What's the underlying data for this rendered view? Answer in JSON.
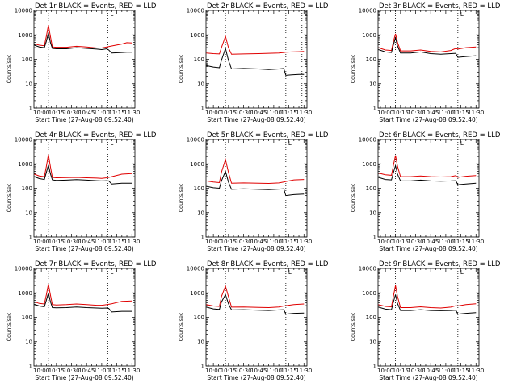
{
  "layout": {
    "rows": 3,
    "cols": 3
  },
  "colors": {
    "events": "#000000",
    "lld": "#e00000"
  },
  "chart_data": [
    {
      "type": "line",
      "title": "Det 1r BLACK = Events, RED = LLD",
      "xlabel": "Start Time (27-Aug-08 09:52:40)",
      "ylabel": "Counts/sec",
      "yscale": "log",
      "ylim": [
        1,
        10000
      ],
      "yticks": [
        1,
        10,
        100,
        1000,
        10000
      ],
      "ytick_labels": [
        "1",
        "10",
        "100",
        "1000",
        "10000"
      ],
      "xlim": [
        "09:52:40",
        "11:33:00"
      ],
      "xticks": [
        "10:00",
        "10:15",
        "10:30",
        "10:45",
        "11:00",
        "11:15",
        "11:30"
      ],
      "vlines": [
        "10:07",
        "11:06"
      ],
      "marker_label": "L",
      "x": [
        "09:53",
        "09:58",
        "10:03",
        "10:05",
        "10:07",
        "10:09",
        "10:11",
        "10:15",
        "10:25",
        "10:35",
        "10:45",
        "10:55",
        "11:00",
        "11:05",
        "11:07",
        "11:10",
        "11:20",
        "11:25",
        "11:30"
      ],
      "series": [
        {
          "name": "Events",
          "values": [
            380,
            320,
            300,
            550,
            1200,
            500,
            280,
            270,
            270,
            300,
            280,
            260,
            250,
            270,
            240,
            180,
            190,
            195,
            195
          ]
        },
        {
          "name": "LLD",
          "values": [
            430,
            380,
            360,
            900,
            2500,
            900,
            320,
            310,
            310,
            340,
            320,
            290,
            290,
            320,
            330,
            350,
            420,
            480,
            470
          ]
        }
      ]
    },
    {
      "type": "line",
      "title": "Det 2r BLACK = Events, RED = LLD",
      "xlabel": "Start Time (27-Aug-08 09:52:40)",
      "ylabel": "Counts/sec",
      "yscale": "log",
      "ylim": [
        1,
        10000
      ],
      "yticks": [
        1,
        10,
        100,
        1000,
        10000
      ],
      "ytick_labels": [
        "1",
        "10",
        "100",
        "1000",
        "10000"
      ],
      "xlim": [
        "09:52:40",
        "11:33:00"
      ],
      "xticks": [
        "10:00",
        "10:15",
        "10:30",
        "10:45",
        "11:00",
        "11:15",
        "11:30"
      ],
      "vlines": [
        "10:12",
        "11:12",
        "11:28"
      ],
      "marker_label": "L",
      "x": [
        "09:53",
        "10:00",
        "10:06",
        "10:08",
        "10:12",
        "10:15",
        "10:18",
        "10:30",
        "10:45",
        "10:55",
        "11:05",
        "11:10",
        "11:12",
        "11:18",
        "11:25",
        "11:30"
      ],
      "series": [
        {
          "name": "Events",
          "values": [
            55,
            48,
            45,
            90,
            280,
            90,
            40,
            42,
            40,
            38,
            40,
            42,
            22,
            23,
            24,
            24
          ]
        },
        {
          "name": "LLD",
          "values": [
            180,
            170,
            165,
            300,
            880,
            300,
            160,
            165,
            170,
            175,
            180,
            190,
            195,
            200,
            205,
            210
          ]
        }
      ]
    },
    {
      "type": "line",
      "title": "Det 3r BLACK = Events, RED = LLD",
      "xlabel": "Start Time (27-Aug-08 09:52:40)",
      "ylabel": "Counts/sec",
      "yscale": "log",
      "ylim": [
        1,
        10000
      ],
      "yticks": [
        1,
        10,
        100,
        1000,
        10000
      ],
      "ytick_labels": [
        "1",
        "10",
        "100",
        "1000",
        "10000"
      ],
      "xlim": [
        "09:52:40",
        "11:33:00"
      ],
      "xticks": [
        "10:00",
        "10:15",
        "10:30",
        "10:45",
        "11:00",
        "11:15",
        "11:30"
      ],
      "vlines": [
        "10:10",
        "11:12"
      ],
      "marker_label": "L",
      "x": [
        "09:53",
        "10:00",
        "10:06",
        "10:08",
        "10:10",
        "10:12",
        "10:15",
        "10:25",
        "10:35",
        "10:45",
        "10:55",
        "11:05",
        "11:10",
        "11:12",
        "11:20",
        "11:30"
      ],
      "series": [
        {
          "name": "Events",
          "values": [
            250,
            200,
            190,
            400,
            750,
            350,
            180,
            180,
            200,
            170,
            160,
            170,
            175,
            120,
            130,
            140
          ]
        },
        {
          "name": "LLD",
          "values": [
            300,
            240,
            230,
            550,
            1100,
            500,
            220,
            220,
            240,
            210,
            200,
            230,
            280,
            260,
            300,
            320
          ]
        }
      ]
    },
    {
      "type": "line",
      "title": "Det 4r BLACK = Events, RED = LLD",
      "xlabel": "Start Time (27-Aug-08 09:52:40)",
      "ylabel": "Counts/sec",
      "yscale": "log",
      "ylim": [
        1,
        10000
      ],
      "yticks": [
        1,
        10,
        100,
        1000,
        10000
      ],
      "ytick_labels": [
        "1",
        "10",
        "100",
        "1000",
        "10000"
      ],
      "xlim": [
        "09:52:40",
        "11:33:00"
      ],
      "xticks": [
        "10:00",
        "10:15",
        "10:30",
        "10:45",
        "11:00",
        "11:15",
        "11:30"
      ],
      "vlines": [
        "10:07",
        "11:06"
      ],
      "marker_label": "L",
      "x": [
        "09:53",
        "09:58",
        "10:03",
        "10:05",
        "10:07",
        "10:09",
        "10:11",
        "10:15",
        "10:25",
        "10:35",
        "10:45",
        "10:55",
        "11:00",
        "11:05",
        "11:07",
        "11:10",
        "11:20",
        "11:30"
      ],
      "series": [
        {
          "name": "Events",
          "values": [
            300,
            250,
            230,
            450,
            900,
            400,
            220,
            210,
            215,
            225,
            215,
            205,
            200,
            205,
            200,
            150,
            160,
            160
          ]
        },
        {
          "name": "LLD",
          "values": [
            380,
            320,
            300,
            800,
            2400,
            800,
            280,
            270,
            275,
            280,
            270,
            260,
            255,
            270,
            280,
            300,
            380,
            400
          ]
        }
      ]
    },
    {
      "type": "line",
      "title": "Det 5r BLACK = Events, RED = LLD",
      "xlabel": "Start Time (27-Aug-08 09:52:40)",
      "ylabel": "Counts/sec",
      "yscale": "log",
      "ylim": [
        1,
        10000
      ],
      "yticks": [
        1,
        10,
        100,
        1000,
        10000
      ],
      "ytick_labels": [
        "1",
        "10",
        "100",
        "1000",
        "10000"
      ],
      "xlim": [
        "09:52:40",
        "11:33:00"
      ],
      "xticks": [
        "10:00",
        "10:15",
        "10:30",
        "10:45",
        "11:00",
        "11:15",
        "11:30"
      ],
      "vlines": [
        "10:12",
        "11:12"
      ],
      "marker_label": "L",
      "x": [
        "09:53",
        "10:00",
        "10:06",
        "10:08",
        "10:12",
        "10:15",
        "10:18",
        "10:30",
        "10:45",
        "10:55",
        "11:05",
        "11:10",
        "11:12",
        "11:20",
        "11:30"
      ],
      "series": [
        {
          "name": "Events",
          "values": [
            120,
            105,
            100,
            200,
            500,
            180,
            90,
            95,
            90,
            88,
            92,
            95,
            50,
            55,
            58
          ]
        },
        {
          "name": "LLD",
          "values": [
            200,
            180,
            170,
            450,
            1500,
            450,
            160,
            165,
            160,
            158,
            165,
            180,
            190,
            220,
            230
          ]
        }
      ]
    },
    {
      "type": "line",
      "title": "Det 6r BLACK = Events, RED = LLD",
      "xlabel": "Start Time (27-Aug-08 09:52:40)",
      "ylabel": "Counts/sec",
      "yscale": "log",
      "ylim": [
        1,
        10000
      ],
      "yticks": [
        1,
        10,
        100,
        1000,
        10000
      ],
      "ytick_labels": [
        "1",
        "10",
        "100",
        "1000",
        "10000"
      ],
      "xlim": [
        "09:52:40",
        "11:33:00"
      ],
      "xticks": [
        "10:00",
        "10:15",
        "10:30",
        "10:45",
        "11:00",
        "11:15",
        "11:30"
      ],
      "vlines": [
        "10:10",
        "11:12"
      ],
      "marker_label": "L",
      "x": [
        "09:53",
        "10:00",
        "10:06",
        "10:08",
        "10:10",
        "10:12",
        "10:15",
        "10:25",
        "10:35",
        "10:45",
        "10:55",
        "11:05",
        "11:10",
        "11:12",
        "11:20",
        "11:30"
      ],
      "series": [
        {
          "name": "Events",
          "values": [
            280,
            230,
            220,
            450,
            850,
            380,
            200,
            200,
            215,
            200,
            195,
            200,
            205,
            140,
            150,
            160
          ]
        },
        {
          "name": "LLD",
          "values": [
            420,
            360,
            340,
            900,
            2200,
            800,
            300,
            300,
            320,
            300,
            290,
            300,
            330,
            280,
            310,
            330
          ]
        }
      ]
    },
    {
      "type": "line",
      "title": "Det 7r BLACK = Events, RED = LLD",
      "xlabel": "Start Time (27-Aug-08 09:52:40)",
      "ylabel": "Counts/sec",
      "yscale": "log",
      "ylim": [
        1,
        10000
      ],
      "yticks": [
        1,
        10,
        100,
        1000,
        10000
      ],
      "ytick_labels": [
        "1",
        "10",
        "100",
        "1000",
        "10000"
      ],
      "xlim": [
        "09:52:40",
        "11:33:00"
      ],
      "xticks": [
        "10:00",
        "10:15",
        "10:30",
        "10:45",
        "11:00",
        "11:15",
        "11:30"
      ],
      "vlines": [
        "10:07",
        "11:06"
      ],
      "marker_label": "L",
      "x": [
        "09:53",
        "09:58",
        "10:03",
        "10:05",
        "10:07",
        "10:09",
        "10:11",
        "10:15",
        "10:25",
        "10:35",
        "10:45",
        "10:55",
        "11:00",
        "11:05",
        "11:07",
        "11:10",
        "11:20",
        "11:30"
      ],
      "series": [
        {
          "name": "Events",
          "values": [
            340,
            290,
            270,
            500,
            1000,
            450,
            250,
            245,
            250,
            265,
            250,
            240,
            235,
            240,
            230,
            165,
            175,
            175
          ]
        },
        {
          "name": "LLD",
          "values": [
            430,
            370,
            350,
            850,
            2300,
            850,
            330,
            320,
            330,
            350,
            330,
            310,
            310,
            330,
            340,
            360,
            450,
            470
          ]
        }
      ]
    },
    {
      "type": "line",
      "title": "Det 8r BLACK = Events, RED = LLD",
      "xlabel": "Start Time (27-Aug-08 09:52:40)",
      "ylabel": "Counts/sec",
      "yscale": "log",
      "ylim": [
        1,
        10000
      ],
      "yticks": [
        1,
        10,
        100,
        1000,
        10000
      ],
      "ytick_labels": [
        "1",
        "10",
        "100",
        "1000",
        "10000"
      ],
      "xlim": [
        "09:52:40",
        "11:33:00"
      ],
      "xticks": [
        "10:00",
        "10:15",
        "10:30",
        "10:45",
        "11:00",
        "11:15",
        "11:30"
      ],
      "vlines": [
        "10:12",
        "11:12"
      ],
      "marker_label": "L",
      "x": [
        "09:53",
        "10:00",
        "10:06",
        "10:08",
        "10:12",
        "10:15",
        "10:18",
        "10:30",
        "10:45",
        "10:55",
        "11:05",
        "11:10",
        "11:12",
        "11:20",
        "11:30"
      ],
      "series": [
        {
          "name": "Events",
          "values": [
            260,
            220,
            210,
            420,
            850,
            360,
            200,
            205,
            195,
            190,
            200,
            205,
            135,
            145,
            150
          ]
        },
        {
          "name": "LLD",
          "values": [
            330,
            290,
            280,
            700,
            1900,
            700,
            260,
            265,
            255,
            250,
            265,
            290,
            300,
            330,
            350
          ]
        }
      ]
    },
    {
      "type": "line",
      "title": "Det 9r BLACK = Events, RED = LLD",
      "xlabel": "Start Time (27-Aug-08 09:52:40)",
      "ylabel": "Counts/sec",
      "yscale": "log",
      "ylim": [
        1,
        10000
      ],
      "yticks": [
        1,
        10,
        100,
        1000,
        10000
      ],
      "ytick_labels": [
        "1",
        "10",
        "100",
        "1000",
        "10000"
      ],
      "xlim": [
        "09:52:40",
        "11:33:00"
      ],
      "xticks": [
        "10:00",
        "10:15",
        "10:30",
        "10:45",
        "11:00",
        "11:15",
        "11:30"
      ],
      "vlines": [
        "10:10",
        "11:12"
      ],
      "marker_label": "L",
      "x": [
        "09:53",
        "10:00",
        "10:06",
        "10:08",
        "10:10",
        "10:12",
        "10:15",
        "10:25",
        "10:35",
        "10:45",
        "10:55",
        "11:05",
        "11:10",
        "11:12",
        "11:20",
        "11:30"
      ],
      "series": [
        {
          "name": "Events",
          "values": [
            260,
            215,
            205,
            430,
            850,
            370,
            190,
            190,
            205,
            190,
            185,
            190,
            195,
            135,
            145,
            155
          ]
        },
        {
          "name": "LLD",
          "values": [
            330,
            280,
            270,
            750,
            2000,
            720,
            250,
            250,
            270,
            250,
            240,
            260,
            300,
            290,
            330,
            360
          ]
        }
      ]
    }
  ]
}
